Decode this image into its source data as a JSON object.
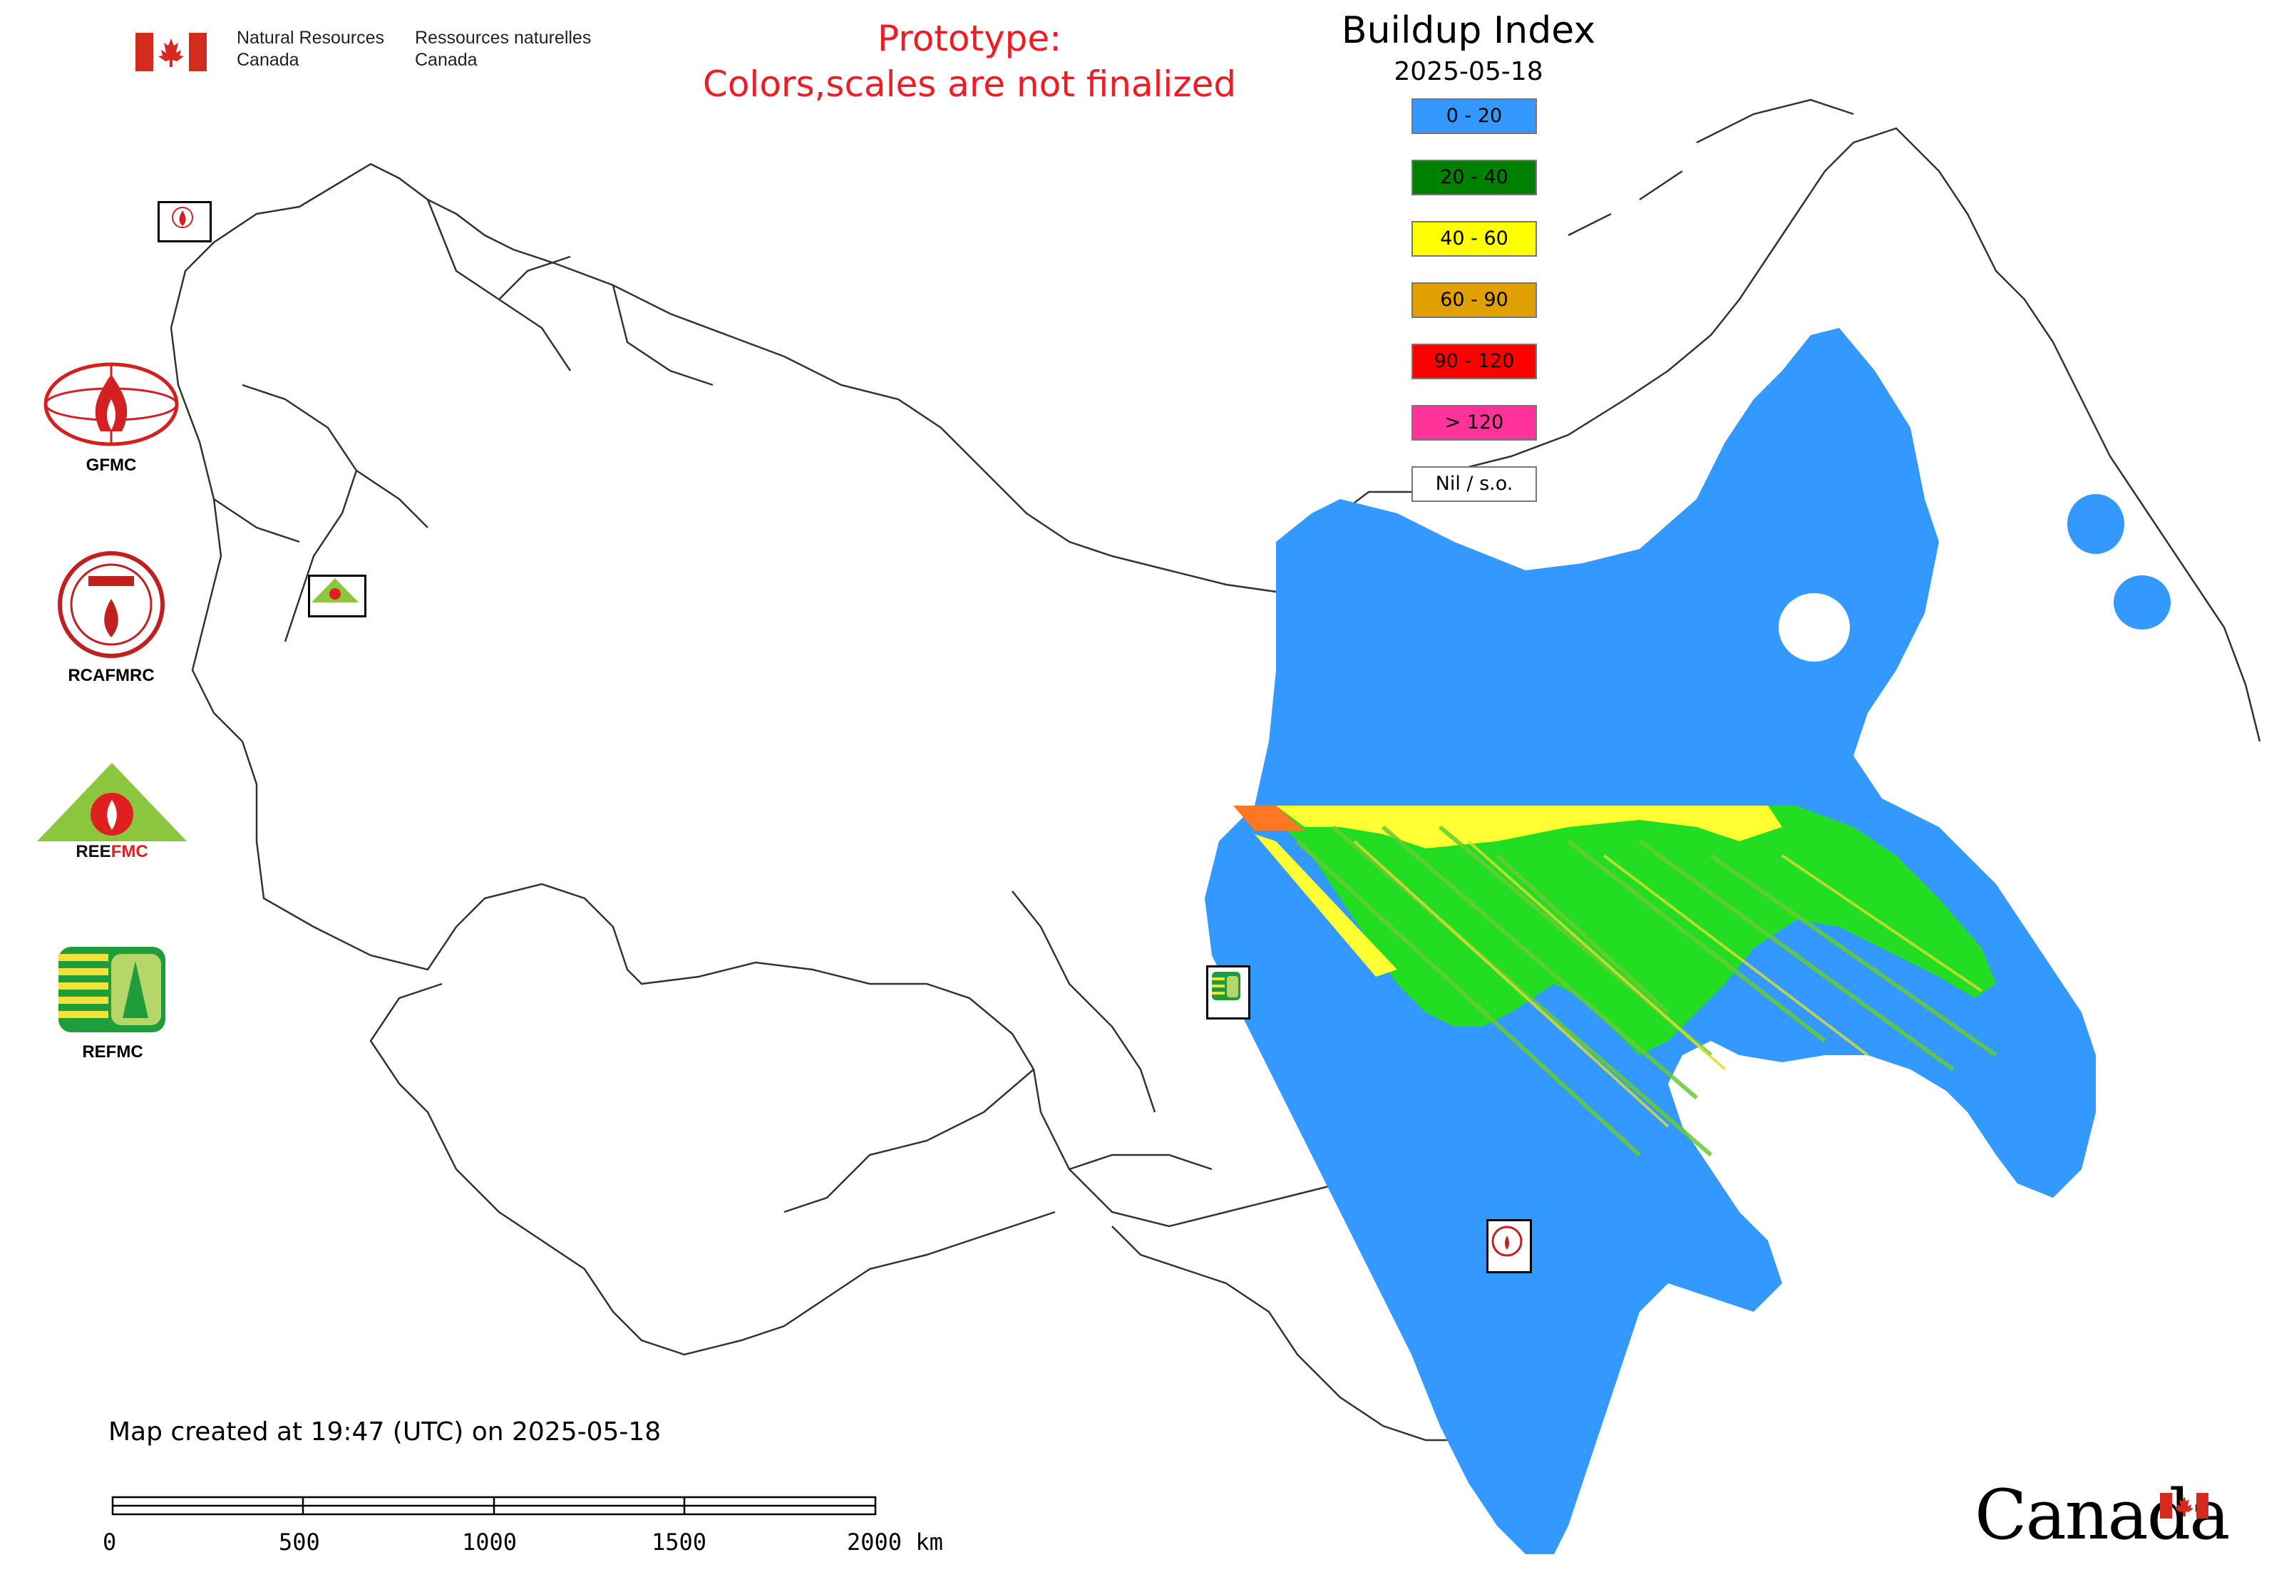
{
  "header": {
    "org_en_line1": "Natural Resources",
    "org_en_line2": "Canada",
    "org_fr_line1": "Ressources naturelles",
    "org_fr_line2": "Canada",
    "prototype_line1": "Prototype:",
    "prototype_line2": "Colors,scales are not finalized"
  },
  "legend": {
    "title": "Buildup Index",
    "date": "2025-05-18",
    "items": [
      {
        "label": "0 - 20",
        "color": "#3399ff"
      },
      {
        "label": "20 - 40",
        "color": "#008000"
      },
      {
        "label": "40 - 60",
        "color": "#ffff00"
      },
      {
        "label": "60 - 90",
        "color": "#e0a000"
      },
      {
        "label": "90 - 120",
        "color": "#ff0000"
      },
      {
        "label": "> 120",
        "color": "#ff3399"
      },
      {
        "label": "Nil / s.o.",
        "color": "#ffffff"
      }
    ]
  },
  "agencies": [
    {
      "label": "GFMC",
      "icon": "gfmc-logo"
    },
    {
      "label": "RCAFMRC",
      "icon": "rcafmrc-logo"
    },
    {
      "label": "REEFMC",
      "icon": "reefmc-logo"
    },
    {
      "label": "REFMC",
      "icon": "refmc-logo"
    }
  ],
  "map_markers": [
    {
      "label": "GFMC",
      "icon": "gfmc-marker"
    },
    {
      "label": "REEFMC",
      "icon": "reefmc-marker"
    },
    {
      "label": "REFMC",
      "icon": "refmc-marker"
    },
    {
      "label": "RCAFMRC",
      "icon": "rcafmrc-marker"
    }
  ],
  "footer": {
    "created_text": "Map created at 19:47 (UTC) on 2025-05-18",
    "scale_ticks": [
      "0",
      "500",
      "1000",
      "1500",
      "2000 km"
    ],
    "canada_wordmark": "Canada"
  },
  "colors": {
    "prototype_text": "#ee1c25",
    "low_index": "#3399ff",
    "moderate_index": "#00dd00",
    "high_index": "#ffff00",
    "very_high_index": "#ff7700",
    "country_border": "#333333",
    "canada_red": "#d52b1e"
  }
}
